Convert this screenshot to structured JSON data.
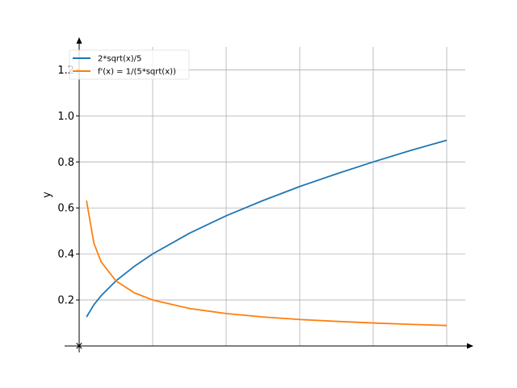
{
  "chart_data": {
    "type": "line",
    "title": "",
    "xlabel": "",
    "ylabel": "y",
    "xlim": [
      0,
      5
    ],
    "ylim": [
      0,
      1.3
    ],
    "x_ticks": [
      1,
      2,
      3,
      4,
      5
    ],
    "y_ticks": [
      0.2,
      0.4,
      0.6,
      0.8,
      1.0,
      1.2
    ],
    "y_tick_labels": [
      "0.2",
      "0.4",
      "0.6",
      "0.8",
      "1.0",
      "1.2"
    ],
    "origin_marker": "×",
    "grid": true,
    "legend_position": "top-left",
    "series": [
      {
        "name": "2*sqrt(x)/5",
        "color": "#1f77b4",
        "x": [
          0.1,
          0.2,
          0.3,
          0.5,
          0.75,
          1.0,
          1.5,
          2.0,
          2.5,
          3.0,
          3.5,
          4.0,
          4.5,
          5.0
        ],
        "y": [
          0.126,
          0.179,
          0.219,
          0.283,
          0.346,
          0.4,
          0.49,
          0.566,
          0.632,
          0.693,
          0.748,
          0.8,
          0.849,
          0.894
        ]
      },
      {
        "name": "f'(x) = 1/(5*sqrt(x))",
        "color": "#ff7f0e",
        "x": [
          0.1,
          0.2,
          0.3,
          0.5,
          0.75,
          1.0,
          1.5,
          2.0,
          2.5,
          3.0,
          3.5,
          4.0,
          4.5,
          5.0
        ],
        "y": [
          0.632,
          0.447,
          0.365,
          0.283,
          0.231,
          0.2,
          0.163,
          0.141,
          0.126,
          0.115,
          0.107,
          0.1,
          0.094,
          0.089
        ]
      }
    ]
  }
}
